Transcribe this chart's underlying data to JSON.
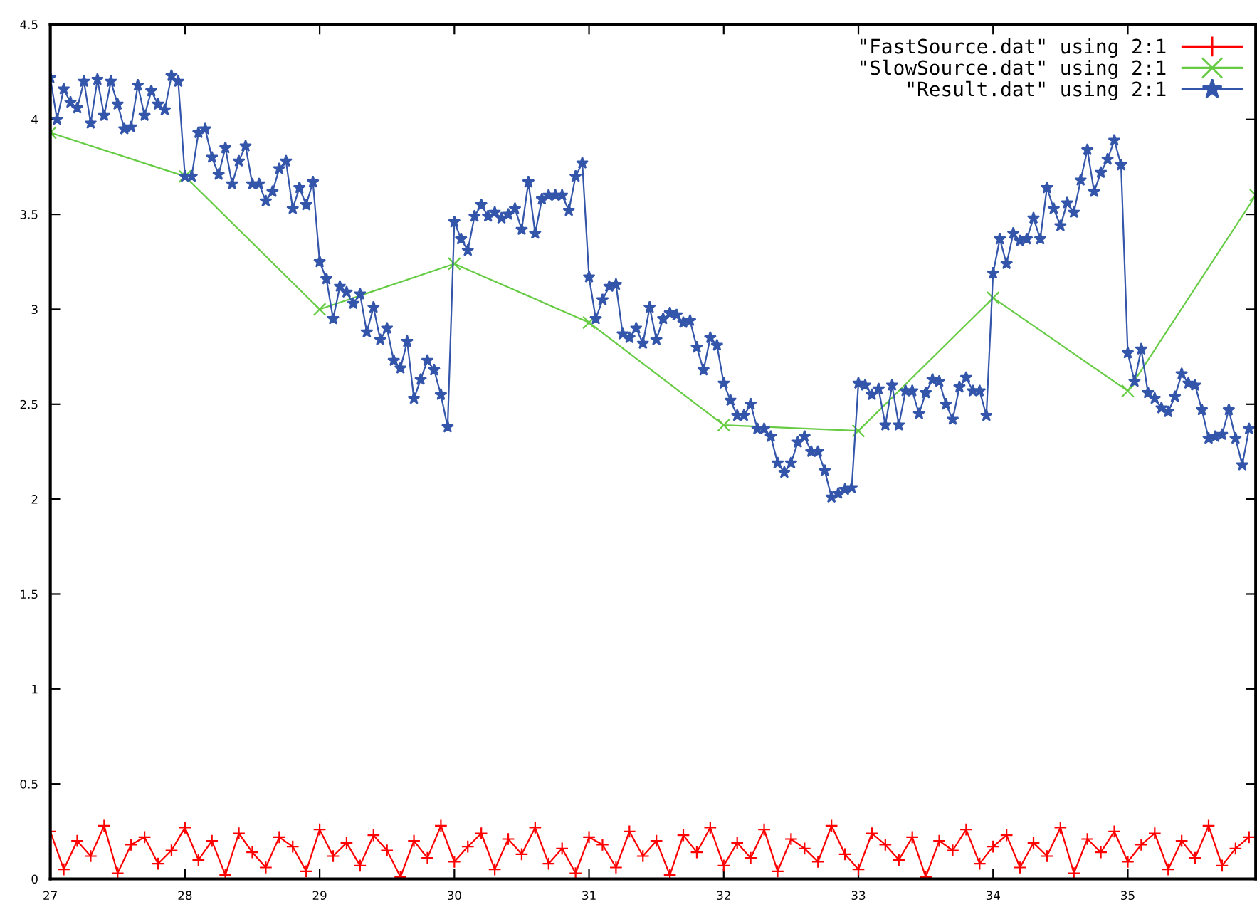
{
  "chart_data": {
    "type": "line",
    "xlim": [
      27,
      35.95
    ],
    "ylim": [
      0,
      4.5
    ],
    "xticks": [
      27,
      28,
      29,
      30,
      31,
      32,
      33,
      34,
      35
    ],
    "yticks": [
      0,
      0.5,
      1,
      1.5,
      2,
      2.5,
      3,
      3.5,
      4,
      4.5
    ],
    "grid": false,
    "legend": "top right",
    "series": [
      {
        "name": "\"FastSource.dat\" using 2:1",
        "color": "#ff0000",
        "marker": "plus",
        "x": [
          27.0,
          27.1,
          27.2,
          27.3,
          27.4,
          27.5,
          27.6,
          27.7,
          27.8,
          27.9,
          28.0,
          28.1,
          28.2,
          28.3,
          28.4,
          28.5,
          28.6,
          28.7,
          28.8,
          28.9,
          29.0,
          29.1,
          29.2,
          29.3,
          29.4,
          29.5,
          29.6,
          29.7,
          29.8,
          29.9,
          30.0,
          30.1,
          30.2,
          30.3,
          30.4,
          30.5,
          30.6,
          30.7,
          30.8,
          30.9,
          31.0,
          31.1,
          31.2,
          31.3,
          31.4,
          31.5,
          31.6,
          31.7,
          31.8,
          31.9,
          32.0,
          32.1,
          32.2,
          32.3,
          32.4,
          32.5,
          32.6,
          32.7,
          32.8,
          32.9,
          33.0,
          33.1,
          33.2,
          33.3,
          33.4,
          33.5,
          33.6,
          33.7,
          33.8,
          33.9,
          34.0,
          34.1,
          34.2,
          34.3,
          34.4,
          34.5,
          34.6,
          34.7,
          34.8,
          34.9,
          35.0,
          35.1,
          35.2,
          35.3,
          35.4,
          35.5,
          35.6,
          35.7,
          35.8,
          35.9
        ],
        "values": [
          0.25,
          0.05,
          0.2,
          0.12,
          0.28,
          0.03,
          0.18,
          0.22,
          0.08,
          0.15,
          0.27,
          0.1,
          0.2,
          0.02,
          0.24,
          0.14,
          0.06,
          0.22,
          0.17,
          0.04,
          0.26,
          0.12,
          0.19,
          0.07,
          0.23,
          0.15,
          0.01,
          0.2,
          0.11,
          0.28,
          0.09,
          0.17,
          0.24,
          0.05,
          0.21,
          0.13,
          0.27,
          0.08,
          0.16,
          0.03,
          0.22,
          0.18,
          0.06,
          0.25,
          0.12,
          0.2,
          0.02,
          0.23,
          0.14,
          0.27,
          0.07,
          0.19,
          0.11,
          0.26,
          0.04,
          0.21,
          0.16,
          0.09,
          0.28,
          0.13,
          0.05,
          0.24,
          0.18,
          0.1,
          0.22,
          0.01,
          0.2,
          0.15,
          0.26,
          0.08,
          0.17,
          0.23,
          0.06,
          0.19,
          0.12,
          0.27,
          0.03,
          0.21,
          0.14,
          0.25,
          0.09,
          0.18,
          0.24,
          0.05,
          0.2,
          0.11,
          0.28,
          0.07,
          0.16,
          0.22
        ]
      },
      {
        "name": "\"SlowSource.dat\" using 2:1",
        "color": "#66cc44",
        "marker": "cross",
        "x": [
          27,
          28,
          29,
          30,
          31,
          32,
          33,
          34,
          35,
          35.95
        ],
        "values": [
          3.93,
          3.7,
          3.0,
          3.24,
          2.93,
          2.39,
          2.36,
          3.06,
          2.57,
          3.6
        ]
      },
      {
        "name": "\"Result.dat\" using 2:1",
        "color": "#3355aa",
        "marker": "star",
        "x": [
          27.0,
          27.05,
          27.1,
          27.15,
          27.2,
          27.25,
          27.3,
          27.35,
          27.4,
          27.45,
          27.5,
          27.55,
          27.6,
          27.65,
          27.7,
          27.75,
          27.8,
          27.85,
          27.9,
          27.95,
          28.0,
          28.05,
          28.1,
          28.15,
          28.2,
          28.25,
          28.3,
          28.35,
          28.4,
          28.45,
          28.5,
          28.55,
          28.6,
          28.65,
          28.7,
          28.75,
          28.8,
          28.85,
          28.9,
          28.95,
          29.0,
          29.05,
          29.1,
          29.15,
          29.2,
          29.25,
          29.3,
          29.35,
          29.4,
          29.45,
          29.5,
          29.55,
          29.6,
          29.65,
          29.7,
          29.75,
          29.8,
          29.85,
          29.9,
          29.95,
          30.0,
          30.05,
          30.1,
          30.15,
          30.2,
          30.25,
          30.3,
          30.35,
          30.4,
          30.45,
          30.5,
          30.55,
          30.6,
          30.65,
          30.7,
          30.75,
          30.8,
          30.85,
          30.9,
          30.95,
          31.0,
          31.05,
          31.1,
          31.15,
          31.2,
          31.25,
          31.3,
          31.35,
          31.4,
          31.45,
          31.5,
          31.55,
          31.6,
          31.65,
          31.7,
          31.75,
          31.8,
          31.85,
          31.9,
          31.95,
          32.0,
          32.05,
          32.1,
          32.15,
          32.2,
          32.25,
          32.3,
          32.35,
          32.4,
          32.45,
          32.5,
          32.55,
          32.6,
          32.65,
          32.7,
          32.75,
          32.8,
          32.85,
          32.9,
          32.95,
          33.0,
          33.05,
          33.1,
          33.15,
          33.2,
          33.25,
          33.3,
          33.35,
          33.4,
          33.45,
          33.5,
          33.55,
          33.6,
          33.65,
          33.7,
          33.75,
          33.8,
          33.85,
          33.9,
          33.95,
          34.0,
          34.05,
          34.1,
          34.15,
          34.2,
          34.25,
          34.3,
          34.35,
          34.4,
          34.45,
          34.5,
          34.55,
          34.6,
          34.65,
          34.7,
          34.75,
          34.8,
          34.85,
          34.9,
          34.95,
          35.0,
          35.05,
          35.1,
          35.15,
          35.2,
          35.25,
          35.3,
          35.35,
          35.4,
          35.45,
          35.5,
          35.55,
          35.6,
          35.65,
          35.7,
          35.75,
          35.8,
          35.85,
          35.9
        ],
        "values": [
          4.22,
          4.0,
          4.16,
          4.09,
          4.06,
          4.2,
          3.98,
          4.21,
          4.02,
          4.2,
          4.08,
          3.95,
          3.96,
          4.18,
          4.02,
          4.15,
          4.08,
          4.05,
          4.23,
          4.2,
          3.7,
          3.7,
          3.93,
          3.95,
          3.8,
          3.71,
          3.85,
          3.66,
          3.78,
          3.86,
          3.66,
          3.66,
          3.57,
          3.62,
          3.74,
          3.78,
          3.53,
          3.64,
          3.55,
          3.67,
          3.25,
          3.16,
          2.95,
          3.12,
          3.09,
          3.03,
          3.08,
          2.88,
          3.01,
          2.84,
          2.9,
          2.73,
          2.69,
          2.83,
          2.53,
          2.63,
          2.73,
          2.68,
          2.55,
          2.38,
          3.46,
          3.37,
          3.31,
          3.49,
          3.55,
          3.49,
          3.51,
          3.48,
          3.5,
          3.53,
          3.42,
          3.67,
          3.4,
          3.58,
          3.6,
          3.6,
          3.6,
          3.52,
          3.7,
          3.77,
          3.17,
          2.95,
          3.05,
          3.12,
          3.13,
          2.87,
          2.85,
          2.9,
          2.82,
          3.01,
          2.84,
          2.95,
          2.98,
          2.97,
          2.93,
          2.94,
          2.8,
          2.68,
          2.85,
          2.81,
          2.61,
          2.52,
          2.44,
          2.44,
          2.5,
          2.37,
          2.37,
          2.33,
          2.19,
          2.14,
          2.19,
          2.3,
          2.33,
          2.25,
          2.25,
          2.15,
          2.01,
          2.03,
          2.05,
          2.06,
          2.61,
          2.6,
          2.55,
          2.58,
          2.39,
          2.6,
          2.39,
          2.57,
          2.57,
          2.45,
          2.56,
          2.63,
          2.62,
          2.5,
          2.42,
          2.59,
          2.64,
          2.57,
          2.57,
          2.44,
          3.19,
          3.37,
          3.24,
          3.4,
          3.36,
          3.37,
          3.48,
          3.37,
          3.64,
          3.53,
          3.44,
          3.56,
          3.51,
          3.68,
          3.84,
          3.62,
          3.72,
          3.79,
          3.89,
          3.76,
          2.77,
          2.62,
          2.79,
          2.56,
          2.53,
          2.48,
          2.46,
          2.54,
          2.66,
          2.61,
          2.6,
          2.47,
          2.32,
          2.33,
          2.34,
          2.47,
          2.32,
          2.18,
          2.37
        ]
      }
    ]
  }
}
